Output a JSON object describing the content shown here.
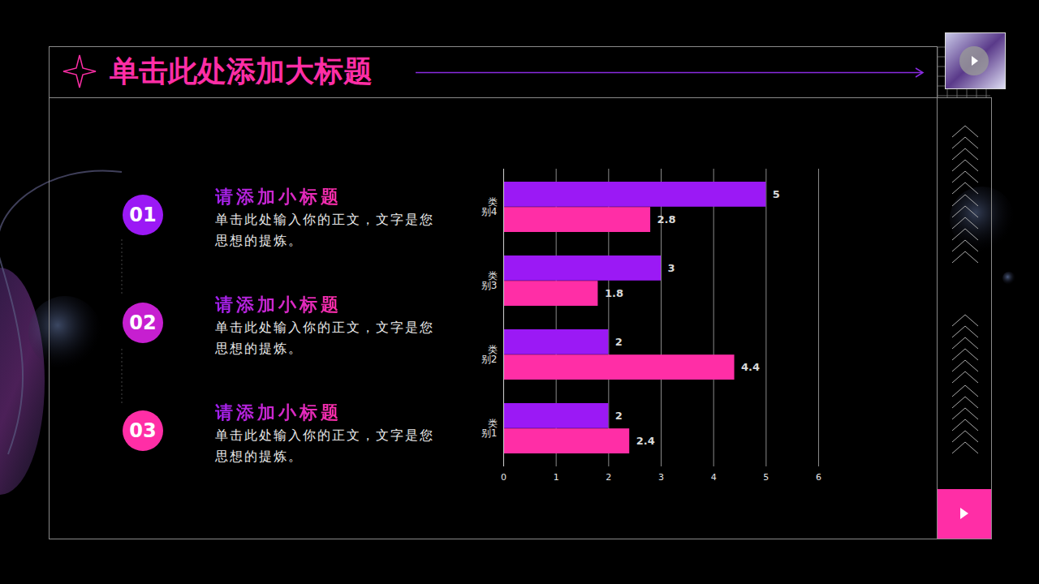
{
  "header": {
    "title": "单击此处添加大标题"
  },
  "items": [
    {
      "number": "01",
      "title": "请添加小标题",
      "text": "单击此处输入你的正文，文字是您思想的提炼。"
    },
    {
      "number": "02",
      "title": "请添加小标题",
      "text": "单击此处输入你的正文，文字是您思想的提炼。"
    },
    {
      "number": "03",
      "title": "请添加小标题",
      "text": "单击此处输入你的正文，文字是您思想的提炼。"
    }
  ],
  "chart_data": {
    "type": "bar",
    "orientation": "horizontal",
    "categories": [
      "类别4",
      "类别3",
      "类别2",
      "类别1"
    ],
    "series": [
      {
        "color": "#9b19f5",
        "values": [
          5,
          3,
          2,
          2
        ]
      },
      {
        "color": "#ff2ea6",
        "values": [
          2.8,
          1.8,
          4.4,
          2.4
        ]
      }
    ],
    "xlim": [
      0,
      6
    ],
    "xticks": [
      0,
      1,
      2,
      3,
      4,
      5,
      6
    ],
    "grid": true,
    "data_labels": true
  }
}
